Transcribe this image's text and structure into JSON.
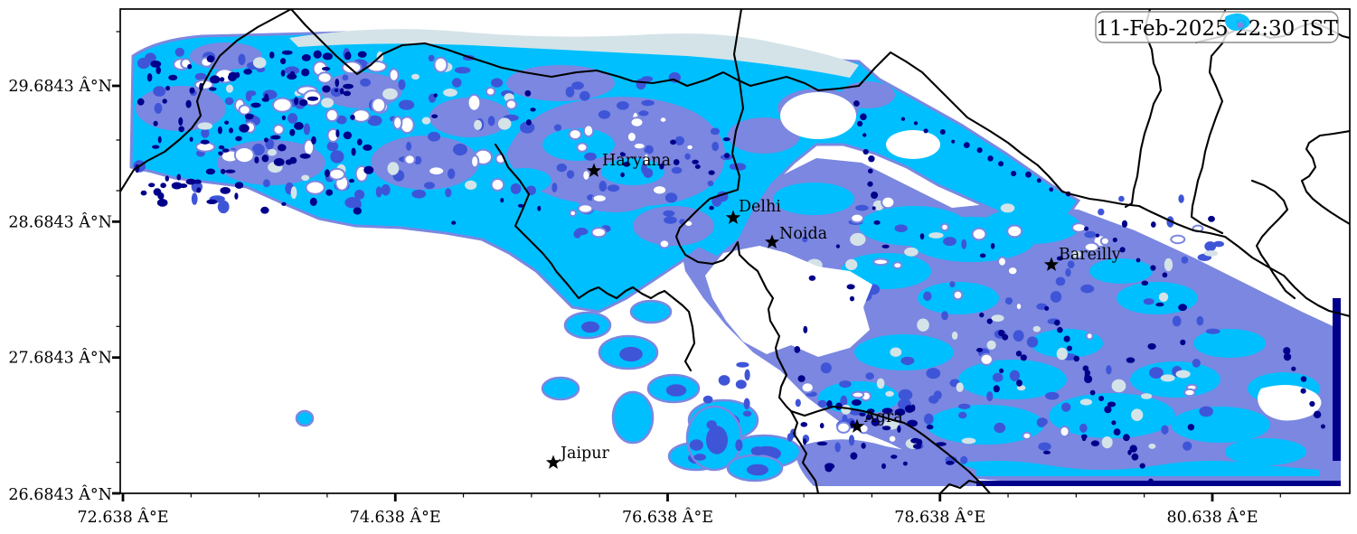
{
  "timestamp_box": {
    "text": "11-Feb-2025 22:30 IST"
  },
  "axes": {
    "x_ticks": [
      "72.638 Â°E",
      "74.638 Â°E",
      "76.638 Â°E",
      "78.638 Â°E",
      "80.638 Â°E"
    ],
    "y_ticks": [
      "29.6843 Â°N",
      "28.6843 Â°N",
      "27.6843 Â°N",
      "26.6843 Â°N"
    ]
  },
  "cities": [
    {
      "name": "Haryana",
      "marker": "star"
    },
    {
      "name": "Delhi",
      "marker": "star"
    },
    {
      "name": "Noida",
      "marker": "star"
    },
    {
      "name": "Bareilly",
      "marker": "star"
    },
    {
      "name": "Agra",
      "marker": "star"
    },
    {
      "name": "Jaipur",
      "marker": "star"
    }
  ],
  "colors": {
    "background": "#ffffff",
    "boundary": "#000000",
    "fog_very_low": "#d4e3e8",
    "fog_low": "#00bfff",
    "fog_moderate": "#7b87e0",
    "fog_high": "#3f55d8",
    "fog_very_high": "#00008b",
    "tick": "#000000",
    "text": "#000000",
    "timestamp_border": "#8a8a8a",
    "timestamp_fill": "#ffffff"
  }
}
